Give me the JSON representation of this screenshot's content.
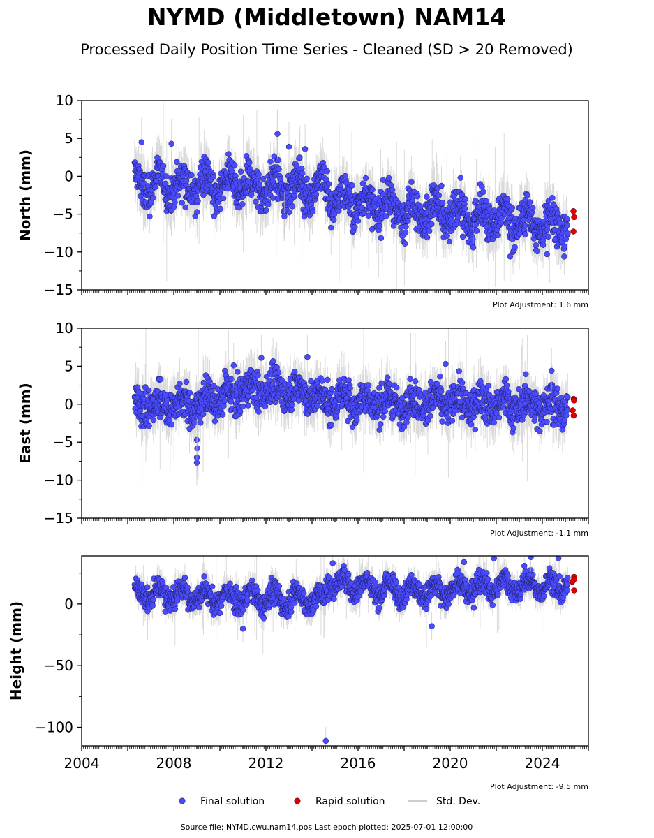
{
  "title": "NYMD (Middletown) NAM14",
  "subtitle": "Processed Daily Position Time Series - Cleaned (SD > 20 Removed)",
  "footer": "Source file: NYMD.cwu.nam14.pos  Last epoch plotted: 2025-07-01 12:00:00",
  "colors": {
    "final": "#4a4aff",
    "final_edge": "#1a1a55",
    "rapid": "#e00000",
    "std": "#bdbdbd"
  },
  "legend": [
    {
      "key": "final",
      "label": "Final solution"
    },
    {
      "key": "rapid",
      "label": "Rapid solution"
    },
    {
      "key": "std",
      "label": "Std. Dev."
    }
  ],
  "chart_data": [
    {
      "type": "scatter",
      "ylabel": "North (mm)",
      "ylim": [
        -15,
        10
      ],
      "yticks": [
        10,
        5,
        0,
        -5,
        -10,
        -15
      ],
      "xlim": [
        2004,
        2026
      ],
      "xticks": [],
      "adjustment": "Plot Adjustment: 1.6 mm",
      "trend": [
        [
          2006.3,
          -1.0
        ],
        [
          2014.7,
          -1.6
        ],
        [
          2014.8,
          -3.0
        ],
        [
          2020.0,
          -5.2
        ],
        [
          2025.1,
          -6.5
        ]
      ],
      "seasonal_amp": 1.5,
      "noise": 1.3,
      "outliers": [
        [
          2012.5,
          5.6
        ],
        [
          2013.0,
          3.9
        ],
        [
          2013.7,
          3.6
        ],
        [
          2006.6,
          4.5
        ],
        [
          2007.9,
          4.3
        ],
        [
          2012.8,
          -5.3
        ],
        [
          2021.0,
          -9.4
        ],
        [
          2022.6,
          -10.6
        ],
        [
          2024.2,
          -10.3
        ]
      ],
      "rapid": [
        [
          2025.35,
          -4.6
        ],
        [
          2025.38,
          -5.4
        ],
        [
          2025.35,
          -7.3
        ]
      ]
    },
    {
      "type": "scatter",
      "ylabel": "East (mm)",
      "ylim": [
        -15,
        10
      ],
      "yticks": [
        10,
        5,
        0,
        -5,
        -10,
        -15
      ],
      "xlim": [
        2004,
        2026
      ],
      "xticks": [],
      "adjustment": "Plot Adjustment: -1.1 mm",
      "trend": [
        [
          2006.3,
          -0.2
        ],
        [
          2009.0,
          0.0
        ],
        [
          2011.0,
          1.8
        ],
        [
          2013.0,
          2.0
        ],
        [
          2014.6,
          0.6
        ],
        [
          2016.0,
          0.3
        ],
        [
          2020.0,
          0.1
        ],
        [
          2025.1,
          -0.3
        ]
      ],
      "seasonal_amp": 0.9,
      "noise": 1.2,
      "outliers": [
        [
          2009.0,
          -4.7
        ],
        [
          2009.02,
          -5.8
        ],
        [
          2009.0,
          -7.0
        ],
        [
          2009.0,
          -7.7
        ],
        [
          2011.8,
          6.1
        ],
        [
          2013.8,
          6.2
        ],
        [
          2019.8,
          5.3
        ],
        [
          2024.4,
          4.4
        ],
        [
          2010.6,
          5.1
        ]
      ],
      "rapid": [
        [
          2025.36,
          0.7
        ],
        [
          2025.36,
          -1.5
        ],
        [
          2025.32,
          -0.8
        ],
        [
          2025.38,
          0.5
        ]
      ]
    },
    {
      "type": "scatter",
      "ylabel": "Height (mm)",
      "ylim": [
        -115,
        39
      ],
      "yticks": [
        0,
        -50,
        -100
      ],
      "xlim": [
        2004,
        2026
      ],
      "xticks": [
        "2004",
        "2008",
        "2012",
        "2016",
        "2020",
        "2024"
      ],
      "adjustment": "Plot Adjustment: -9.5 mm",
      "trend": [
        [
          2006.3,
          9.0
        ],
        [
          2010.0,
          5.0
        ],
        [
          2014.5,
          3.0
        ],
        [
          2014.7,
          18.0
        ],
        [
          2017.0,
          12.0
        ],
        [
          2019.5,
          10.0
        ],
        [
          2021.0,
          14.0
        ],
        [
          2025.1,
          15.0
        ]
      ],
      "seasonal_amp": 6.0,
      "noise": 4.5,
      "outliers": [
        [
          2014.6,
          -111.0
        ],
        [
          2011.0,
          -20.0
        ],
        [
          2019.2,
          -18.0
        ],
        [
          2021.9,
          37.0
        ],
        [
          2024.7,
          37.0
        ],
        [
          2020.6,
          34.0
        ],
        [
          2014.9,
          33.0
        ],
        [
          2023.5,
          38.0
        ]
      ],
      "rapid": [
        [
          2025.38,
          22.0
        ],
        [
          2025.38,
          20.0
        ],
        [
          2025.38,
          11.0
        ],
        [
          2025.3,
          18.0
        ]
      ]
    }
  ]
}
